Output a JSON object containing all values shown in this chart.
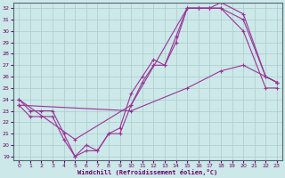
{
  "xlabel": "Windchill (Refroidissement éolien,°C)",
  "xlim": [
    -0.5,
    23.5
  ],
  "ylim": [
    18.7,
    32.5
  ],
  "xticks": [
    0,
    1,
    2,
    3,
    4,
    5,
    6,
    7,
    8,
    9,
    10,
    11,
    12,
    13,
    14,
    15,
    16,
    17,
    18,
    19,
    20,
    21,
    22,
    23
  ],
  "yticks": [
    19,
    20,
    21,
    22,
    23,
    24,
    25,
    26,
    27,
    28,
    29,
    30,
    31,
    32
  ],
  "bg_color": "#cce8e8",
  "grid_color": "#aacccc",
  "line_color": "#993399",
  "line1_x": [
    0,
    1,
    2,
    3,
    4,
    5,
    6,
    7,
    8,
    9,
    10,
    11,
    12,
    13,
    14,
    15,
    16,
    17,
    18,
    20,
    22,
    23
  ],
  "line1_y": [
    24.0,
    23.0,
    23.0,
    23.0,
    21.0,
    19.0,
    20.0,
    19.5,
    21.0,
    21.5,
    24.5,
    26.0,
    27.5,
    27.0,
    29.5,
    32.0,
    32.0,
    32.0,
    32.0,
    30.0,
    25.0,
    25.0
  ],
  "line2_x": [
    0,
    1,
    2,
    3,
    4,
    5,
    6,
    7,
    8,
    9,
    10,
    11,
    12,
    13,
    14,
    15,
    16,
    17,
    18,
    20,
    22,
    23
  ],
  "line2_y": [
    23.5,
    22.5,
    22.5,
    22.5,
    20.5,
    19.0,
    19.5,
    19.5,
    21.0,
    21.0,
    23.5,
    25.5,
    27.0,
    27.0,
    29.0,
    32.0,
    32.0,
    32.0,
    32.0,
    31.0,
    26.0,
    25.5
  ],
  "line3_x": [
    0,
    5,
    10,
    15,
    16,
    17,
    18,
    20,
    22,
    23
  ],
  "line3_y": [
    24.0,
    20.5,
    23.5,
    32.0,
    32.0,
    32.0,
    32.5,
    31.5,
    26.0,
    25.5
  ],
  "line4_x": [
    0,
    10,
    15,
    18,
    20,
    23
  ],
  "line4_y": [
    23.5,
    23.0,
    25.0,
    26.5,
    27.0,
    25.5
  ]
}
